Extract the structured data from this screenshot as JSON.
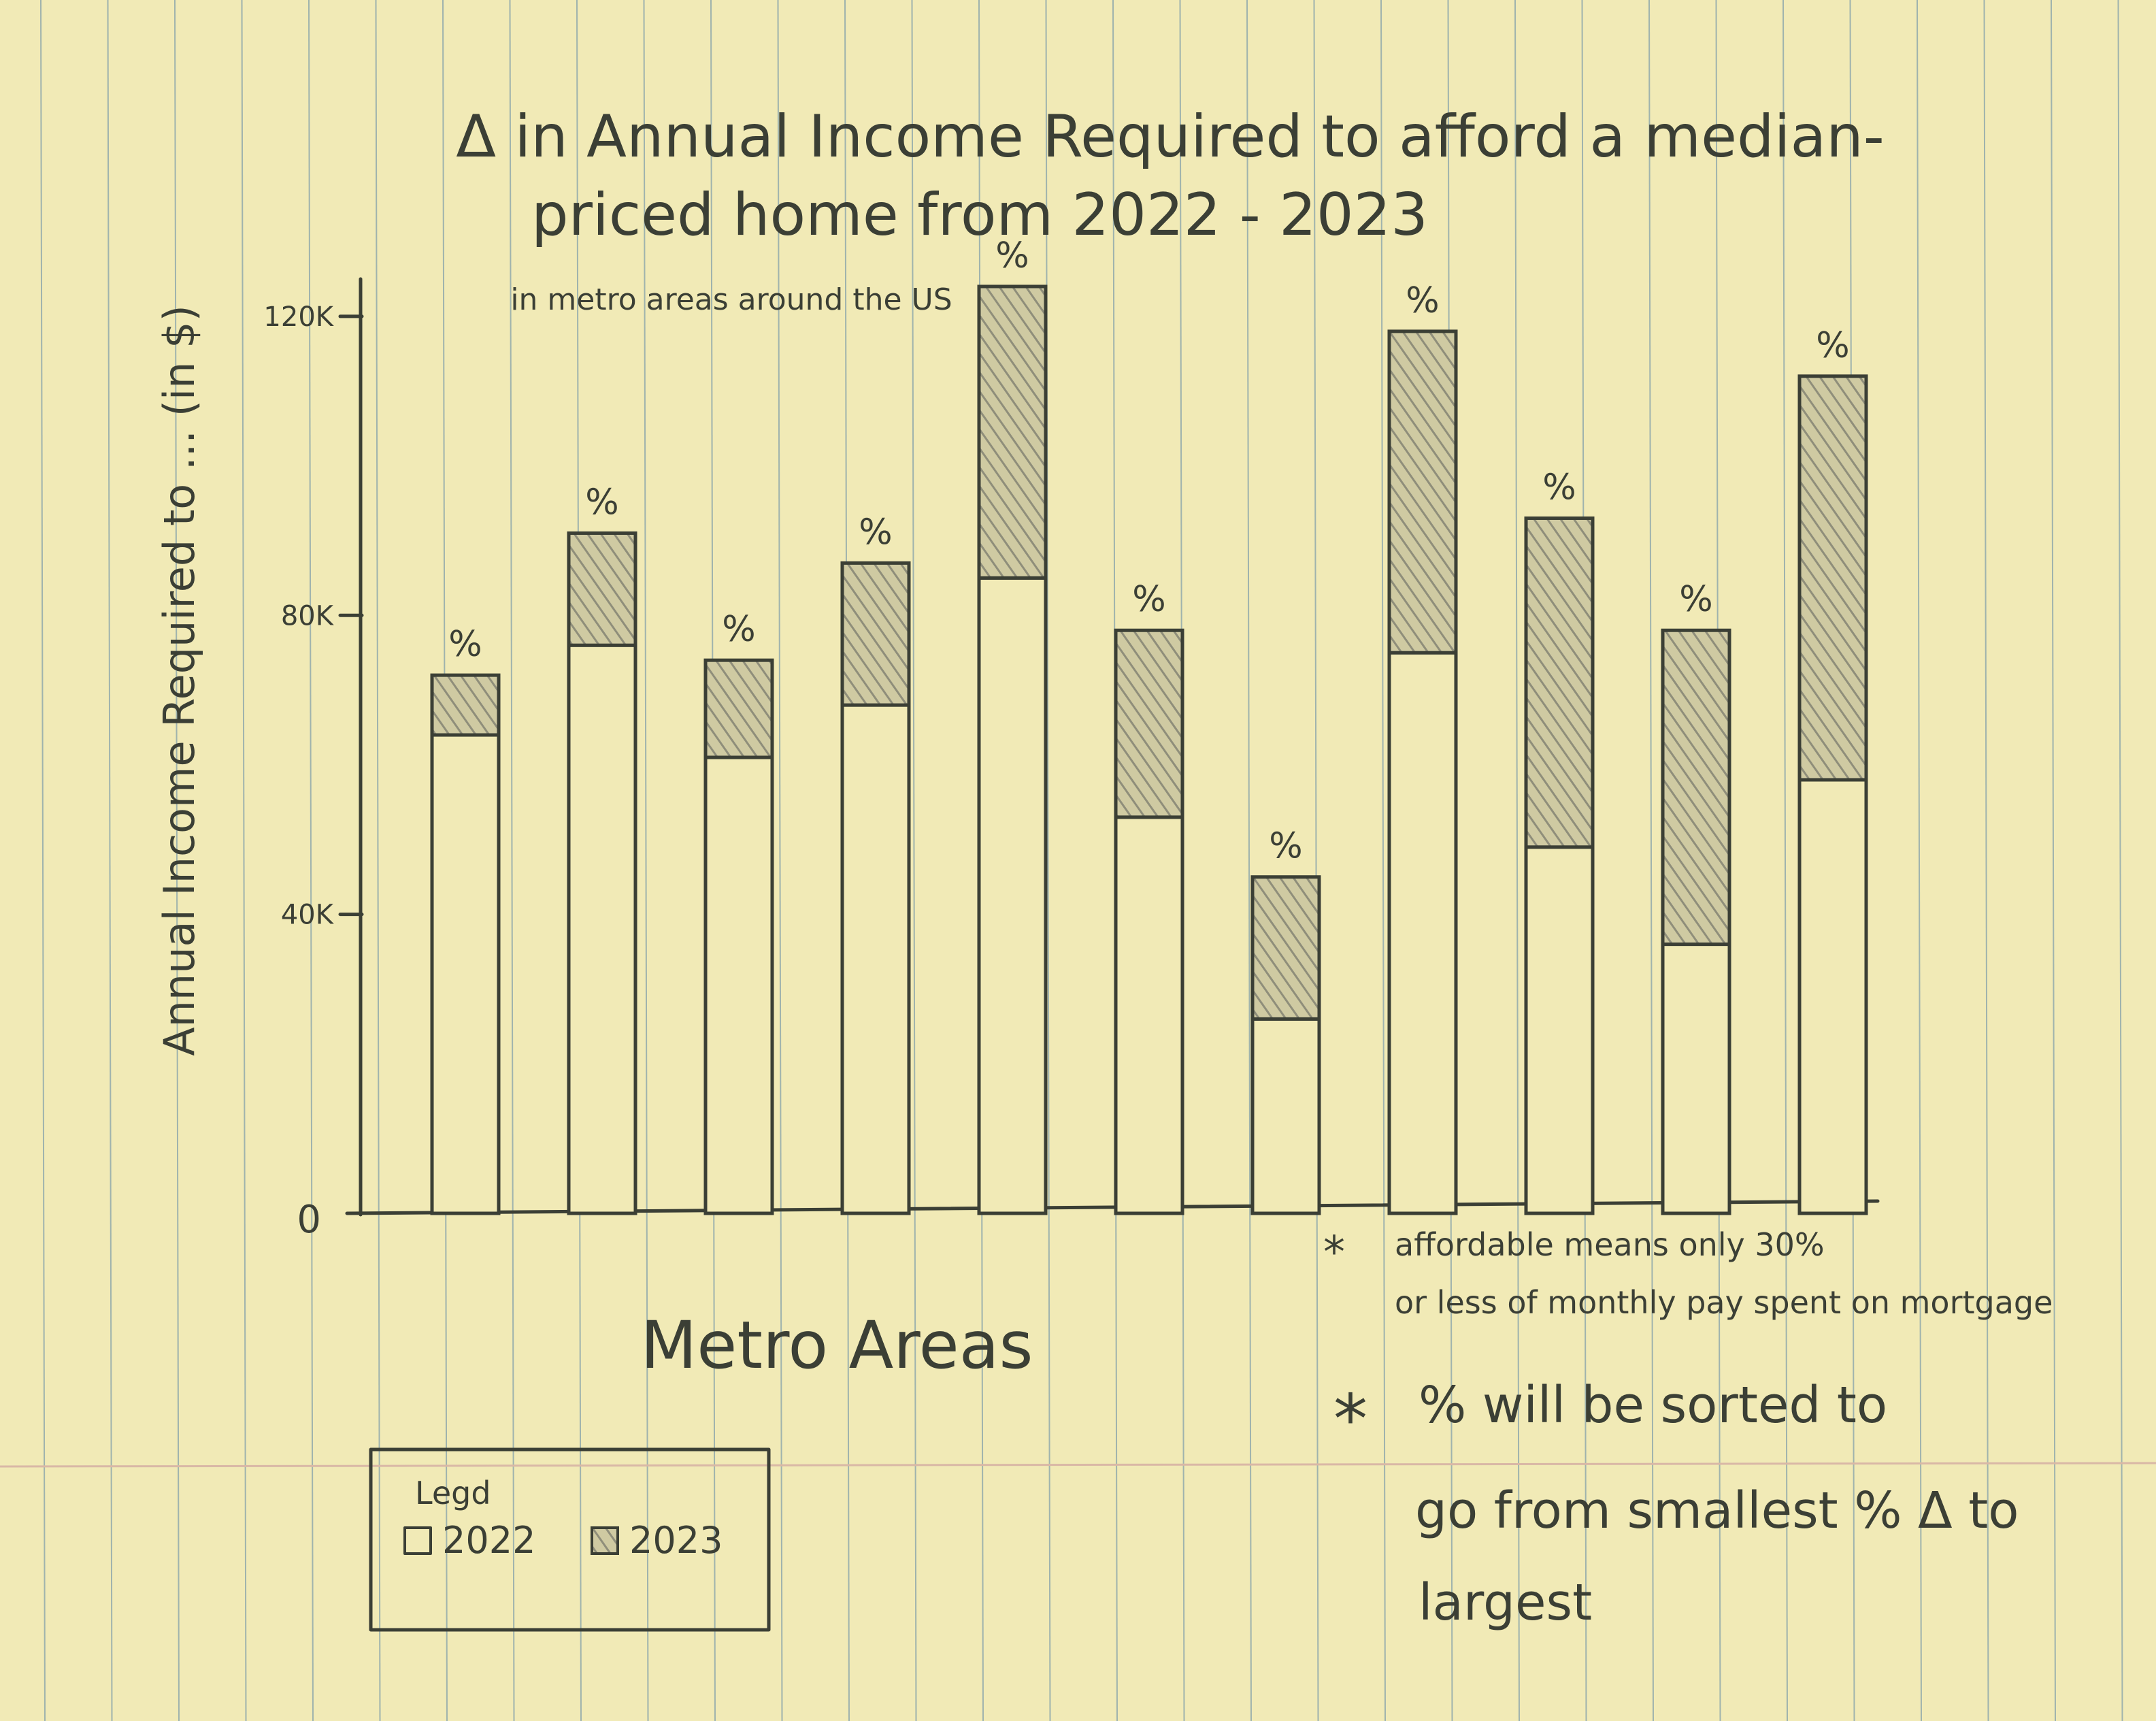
{
  "chart_data": {
    "type": "bar",
    "title_line1": "Δ in Annual Income Required to afford a median-",
    "title_line2": "priced home from 2022 - 2023",
    "subtitle": "in metro areas around the US",
    "ylabel": "Annual Income Required to ... (in $)",
    "xlabel": "Metro Areas",
    "ylim": [
      0,
      125000
    ],
    "yticks": [
      {
        "value": 0,
        "label": "0"
      },
      {
        "value": 40000,
        "label": "40K"
      },
      {
        "value": 80000,
        "label": "80K"
      },
      {
        "value": 120000,
        "label": "120K"
      }
    ],
    "bar_label": "%",
    "series": [
      {
        "name": "2022",
        "values": [
          64000,
          76000,
          61000,
          68000,
          85000,
          53000,
          26000,
          75000,
          49000,
          36000,
          58000
        ]
      },
      {
        "name": "2023",
        "values": [
          72000,
          91000,
          74000,
          87000,
          124000,
          78000,
          45000,
          118000,
          93000,
          78000,
          112000
        ]
      }
    ],
    "legend": {
      "title": "Legd",
      "position": "bottom-left"
    },
    "notes": [
      "affordable means only 30% or less of monthly pay spent on mortgage",
      "% will be sorted to go from smallest % Δ to largest"
    ],
    "grid": false
  },
  "colors": {
    "paper": "#f1eab6",
    "ink": "#3b3f35",
    "rule": "#9fb3ad",
    "margin_rule": "#d9b8a6",
    "hatch": "#a6a591"
  }
}
